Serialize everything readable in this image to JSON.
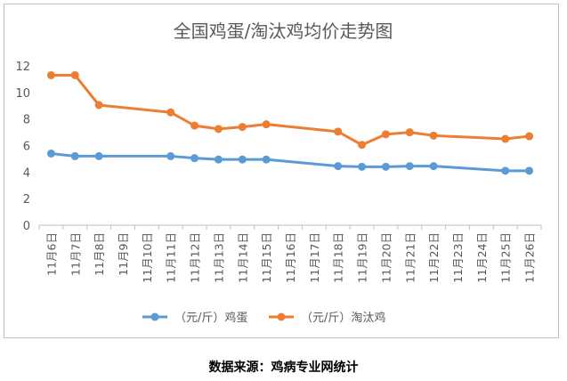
{
  "chart_data": {
    "type": "line",
    "title": "全国鸡蛋/淘汰鸡均价走势图",
    "categories": [
      "11月6日",
      "11月7日",
      "11月8日",
      "11月9日",
      "11月10日",
      "11月11日",
      "11月12日",
      "11月13日",
      "11月14日",
      "11月15日",
      "11月16日",
      "11月17日",
      "11月18日",
      "11月19日",
      "11月20日",
      "11月21日",
      "11月22日",
      "11月23日",
      "11月24日",
      "11月25日",
      "11月26日"
    ],
    "series": [
      {
        "name": "（元/斤）鸡蛋",
        "color": "#5b9bd5",
        "values": [
          5.4,
          5.2,
          5.2,
          null,
          null,
          5.2,
          5.05,
          4.95,
          4.95,
          4.95,
          null,
          null,
          4.45,
          4.4,
          4.4,
          4.45,
          4.45,
          null,
          null,
          4.1,
          4.1
        ]
      },
      {
        "name": "（元/斤）淘汰鸡",
        "color": "#ed7d31",
        "values": [
          11.3,
          11.3,
          9.05,
          null,
          null,
          8.5,
          7.5,
          7.25,
          7.4,
          7.6,
          null,
          null,
          7.05,
          6.05,
          6.85,
          7.0,
          6.75,
          null,
          null,
          6.5,
          6.7
        ]
      }
    ],
    "ylim": [
      0,
      12
    ],
    "yticks": [
      0,
      2,
      4,
      6,
      8,
      10,
      12
    ],
    "grid": false,
    "legend": "bottom",
    "xlabel": "",
    "ylabel": ""
  },
  "source_text": "数据来源：鸡病专业网统计"
}
